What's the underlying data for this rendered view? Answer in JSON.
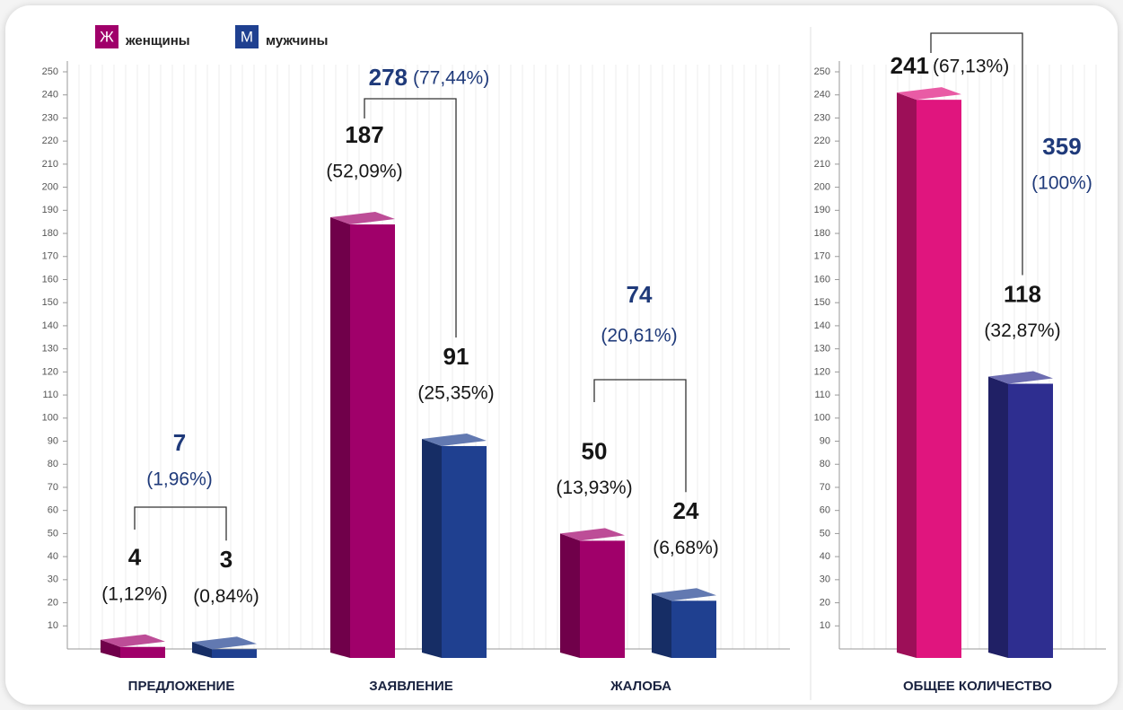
{
  "charts": [
    {
      "type": "bar",
      "categories": [
        "ПРЕДЛОЖЕНИЕ",
        "ЗАЯВЛЕНИЕ",
        "ЖАЛОБА"
      ],
      "series": [
        {
          "name": "женщины",
          "symbol": "Ж",
          "color": "#a0006a",
          "values": [
            4,
            187,
            50
          ],
          "percent_labels": [
            "(1,12%)",
            "(52,09%)",
            "(13,93%)"
          ]
        },
        {
          "name": "мужчины",
          "symbol": "М",
          "color": "#1f4090",
          "values": [
            3,
            91,
            24
          ],
          "percent_labels": [
            "(0,84%)",
            "(25,35%)",
            "(6,68%)"
          ]
        }
      ],
      "totals": [
        7,
        278,
        74
      ],
      "total_labels": [
        "(1,96%)",
        "(77,44%)",
        "(20,61%)"
      ],
      "ylim": [
        0,
        250
      ],
      "yticks": [
        10,
        20,
        30,
        40,
        50,
        60,
        70,
        80,
        90,
        100,
        110,
        120,
        130,
        140,
        150,
        160,
        170,
        180,
        190,
        200,
        210,
        220,
        230,
        240,
        250
      ]
    },
    {
      "type": "bar",
      "categories": [
        "ОБЩЕЕ КОЛИЧЕСТВО"
      ],
      "series": [
        {
          "color": "#e0157e",
          "values": [
            241
          ],
          "percent_labels": [
            "(67,13%)"
          ]
        },
        {
          "color": "#2e2e90",
          "values": [
            118
          ],
          "percent_labels": [
            "(32,87%)"
          ]
        }
      ],
      "totals": [
        359
      ],
      "total_labels": [
        "(100%)"
      ],
      "ylim": [
        0,
        250
      ],
      "yticks": [
        10,
        20,
        30,
        40,
        50,
        60,
        70,
        80,
        90,
        100,
        110,
        120,
        130,
        140,
        150,
        160,
        170,
        180,
        190,
        200,
        210,
        220,
        230,
        240,
        250
      ]
    }
  ]
}
